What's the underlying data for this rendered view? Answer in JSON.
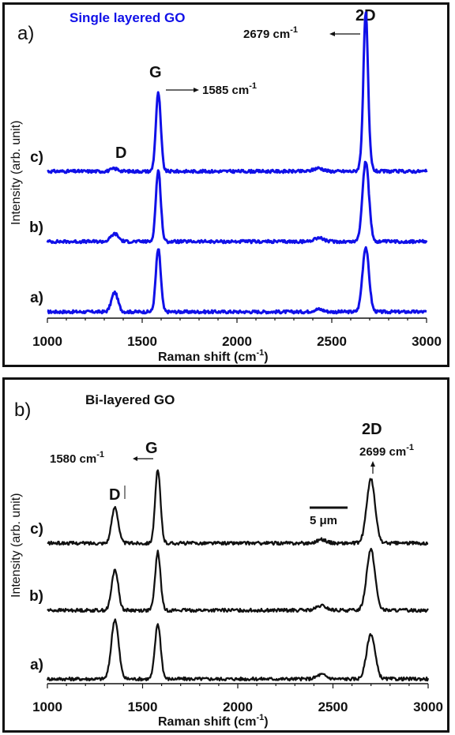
{
  "chart_data": [
    {
      "type": "line",
      "panel_letter": "a)",
      "title": "Single layered GO",
      "title_color": "#1010e8",
      "line_color": "#1010e8",
      "xlabel": "Raman shift (cm",
      "xlabel_sup": "-1",
      "xlabel_close": ")",
      "ylabel": "Intensity (arb. unit)",
      "xlim": [
        1000,
        3000
      ],
      "xticks": [
        1000,
        1500,
        2000,
        2500,
        3000
      ],
      "peak_labels": {
        "D": "D",
        "G": "G",
        "2D": "2D"
      },
      "annotations": [
        {
          "text": "1585 cm",
          "sup": "-1",
          "peak": "G"
        },
        {
          "text": "2679 cm",
          "sup": "-1",
          "peak": "2D"
        }
      ],
      "series": [
        {
          "name": "a)",
          "peaks": [
            {
              "x": 1355,
              "height": 0.3,
              "width": 17
            },
            {
              "x": 1585,
              "height": 0.97,
              "width": 13
            },
            {
              "x": 2430,
              "height": 0.04,
              "width": 25
            },
            {
              "x": 2679,
              "height": 1.0,
              "width": 17
            }
          ]
        },
        {
          "name": "b)",
          "peaks": [
            {
              "x": 1355,
              "height": 0.12,
              "width": 20
            },
            {
              "x": 1585,
              "height": 1.1,
              "width": 13
            },
            {
              "x": 2430,
              "height": 0.06,
              "width": 25
            },
            {
              "x": 2679,
              "height": 1.24,
              "width": 17
            }
          ]
        },
        {
          "name": "c)",
          "peaks": [
            {
              "x": 1355,
              "height": 0.04,
              "width": 20
            },
            {
              "x": 1585,
              "height": 1.21,
              "width": 13
            },
            {
              "x": 2430,
              "height": 0.05,
              "width": 25
            },
            {
              "x": 2679,
              "height": 0.75,
              "width": 17
            },
            {
              "x": 2679,
              "height": 1.7,
              "width": 11
            }
          ]
        }
      ]
    },
    {
      "type": "line",
      "panel_letter": "b)",
      "title": "Bi-layered GO",
      "title_color": "#111111",
      "line_color": "#111111",
      "xlabel": "Raman shift (cm",
      "xlabel_sup": "-1",
      "xlabel_close": ")",
      "ylabel": "Intensity (arb. unit)",
      "xlim": [
        1000,
        3000
      ],
      "xticks": [
        1000,
        1500,
        2000,
        2500,
        3000
      ],
      "peak_labels": {
        "D": "D",
        "G": "G",
        "2D": "2D"
      },
      "annotations": [
        {
          "text": "1580 cm",
          "sup": "-1",
          "peak": "G"
        },
        {
          "text": "2699 cm",
          "sup": "-1",
          "peak": "2D"
        }
      ],
      "scale_bar": "5 μm",
      "series": [
        {
          "name": "a)",
          "peaks": [
            {
              "x": 1355,
              "height": 0.82,
              "width": 19
            },
            {
              "x": 1580,
              "height": 0.76,
              "width": 15
            },
            {
              "x": 2440,
              "height": 0.06,
              "width": 25
            },
            {
              "x": 2699,
              "height": 0.62,
              "width": 22
            }
          ]
        },
        {
          "name": "b)",
          "peaks": [
            {
              "x": 1355,
              "height": 0.56,
              "width": 17
            },
            {
              "x": 1580,
              "height": 0.8,
              "width": 14
            },
            {
              "x": 2440,
              "height": 0.06,
              "width": 25
            },
            {
              "x": 2699,
              "height": 0.84,
              "width": 22
            }
          ]
        },
        {
          "name": "c)",
          "peaks": [
            {
              "x": 1355,
              "height": 0.5,
              "width": 17
            },
            {
              "x": 1580,
              "height": 1.0,
              "width": 14
            },
            {
              "x": 2440,
              "height": 0.05,
              "width": 25
            },
            {
              "x": 2699,
              "height": 0.88,
              "width": 22
            }
          ]
        }
      ]
    }
  ]
}
